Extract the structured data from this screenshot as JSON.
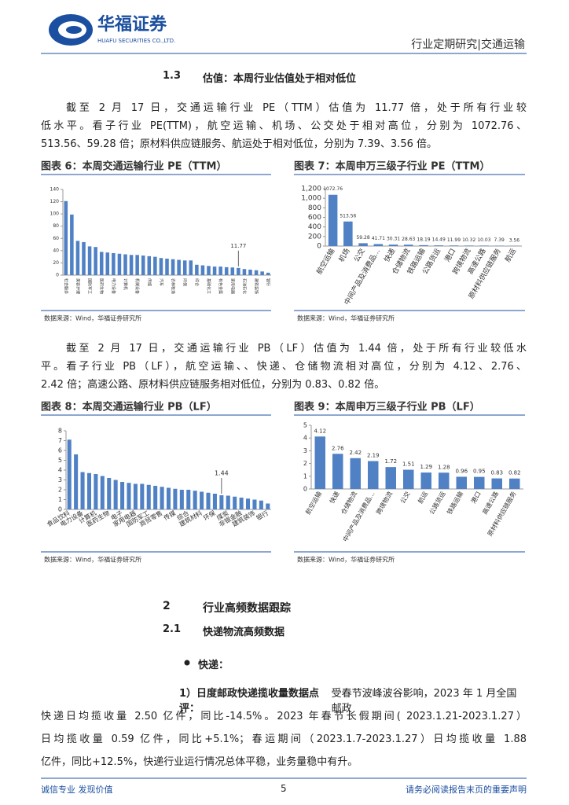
{
  "header": {
    "company": "华福证券",
    "company_en": "HUAFU SECURITIES CO.,LTD.",
    "report_type": "行业定期研究|交通运输"
  },
  "section_1_3": {
    "number": "1.3",
    "title": "估值：本周行业估值处于相对低位"
  },
  "paragraph_1": [
    "截至 2 月 17 日，交通运输行业 PE（TTM）估值为 11.77 倍，处于所有行业较",
    "低水平。看子行业 PE(TTM)，航空运输、机场、公交处于相对高位，分别为 1072.76、",
    "513.56、59.28 倍；原材料供应链服务、航运处于相对低位，分别为 7.39、3.56 倍。"
  ],
  "paragraph_2": [
    "截至 2 月 17 日，交通运输行业 PB（LF）估值为 1.44 倍，处于所有行业较低水",
    "平。看子行业 PB（LF），航空运输、、快递、仓储物流相对高位，分别为 4.12、2.76、",
    "2.42 倍；高速公路、原材料供应链服务相对低位，分别为 0.83、0.82 倍。"
  ],
  "section_2": {
    "number": "2",
    "title": "行业高频数据跟踪"
  },
  "section_2_1": {
    "number": "2.1",
    "title": "快递物流高频数据"
  },
  "bullet": "快递：",
  "paragraph_3": {
    "lead": "1）日度邮政快递揽收量数据点评：",
    "lines": [
      "受春节波峰波谷影响，2023 年 1 月全国邮政",
      "快递日均揽收量 2.50 亿件，同比-14.5%。2023 年春节长假期间( 2023.1.21-2023.1.27）",
      "日均揽收量 0.59 亿件，同比+5.1%；春运期间（2023.1.7-2023.1.27）日均揽收量 1.88",
      "亿件，同比+12.5%，快递行业运行情况总体平稳，业务量稳中有升。"
    ]
  },
  "footer": {
    "left": "诚信专业  发现价值",
    "page": "5",
    "right": "请务必阅读报告末页的重要声明"
  },
  "chart_data": [
    {
      "type": "bar",
      "title": "图表 6：本周交通运输行业 PE（TTM）",
      "source": "数据来源：Wind，华福证券研究所",
      "color": "#4f81c4",
      "grid": false,
      "categories": [
        "社会服务",
        null,
        "美容护理",
        null,
        "国防军工",
        null,
        "医药生物",
        null,
        "电力设备",
        null,
        "计算机",
        null,
        "机械设备",
        null,
        "传媒",
        null,
        "汽车",
        null,
        "农林牧渔",
        null,
        "环保",
        null,
        "综合",
        null,
        "基础化工",
        null,
        "有色金属",
        null,
        "家用电器",
        null,
        "石油石化",
        null,
        "建筑装饰",
        null,
        "银行"
      ],
      "values": [
        121,
        99,
        56,
        54,
        47,
        46,
        38,
        37,
        36,
        35,
        34,
        33,
        33,
        32,
        31,
        30,
        28,
        27,
        26,
        25,
        24,
        24,
        17,
        16,
        15,
        14,
        14,
        13,
        12.5,
        11.77,
        10,
        9,
        8,
        6,
        4
      ],
      "value_labels": [
        null,
        null,
        null,
        null,
        null,
        null,
        null,
        null,
        null,
        null,
        null,
        null,
        null,
        null,
        null,
        null,
        null,
        null,
        null,
        null,
        null,
        null,
        null,
        null,
        null,
        null,
        null,
        null,
        null,
        "11.77",
        null,
        null,
        null,
        null,
        null
      ],
      "ylim": [
        0,
        140
      ],
      "yticks": [
        0,
        20,
        40,
        60,
        80,
        100,
        120,
        140
      ]
    },
    {
      "type": "bar",
      "title": "图表 7：本周申万三级子行业 PE（TTM）",
      "source": "数据来源：Wind，华福证券研究所",
      "color": "#4f81c4",
      "grid": false,
      "categories": [
        "航空运输",
        "机场",
        "公交",
        "中间产品及消费品…",
        "快递",
        "仓储物流",
        "铁路运输",
        "公路货运",
        "港口",
        "跨境物流",
        "高速公路",
        "原材料供应链服务",
        "航运"
      ],
      "values": [
        1072.76,
        513.56,
        59.28,
        41.71,
        30.31,
        28.63,
        18.19,
        14.49,
        11.99,
        10.32,
        10.03,
        7.39,
        3.56
      ],
      "data_labels": true,
      "ylim": [
        0,
        1200
      ],
      "yticks": [
        0,
        200,
        400,
        600,
        800,
        {
          "value": 1000,
          "label": "1,000"
        },
        {
          "value": 1200,
          "label": "1,200"
        }
      ]
    },
    {
      "type": "bar",
      "title": "图表 8：本周交通运输行业 PB（LF）",
      "source": "数据来源：Wind，华福证券研究所",
      "color": "#4f81c4",
      "grid": false,
      "categories": [
        "食品饮料",
        null,
        "电力设备",
        null,
        "计算机",
        null,
        "医药生物",
        null,
        "电子",
        null,
        "家用电器",
        null,
        "国防军工",
        null,
        "商贸零售",
        null,
        "传媒",
        null,
        "综合",
        null,
        "建筑材料",
        null,
        "环保",
        null,
        "煤炭",
        null,
        "非银金融",
        null,
        "建筑装饰",
        null,
        "银行"
      ],
      "values": [
        7.1,
        5.6,
        3.8,
        3.7,
        3.6,
        3.4,
        3.2,
        3.0,
        2.8,
        2.7,
        2.6,
        2.6,
        2.5,
        2.4,
        2.3,
        2.2,
        2.1,
        2.0,
        2.0,
        1.9,
        1.8,
        1.7,
        1.6,
        1.44,
        1.4,
        1.3,
        1.2,
        1.1,
        1.0,
        0.9,
        0.6
      ],
      "value_labels": [
        null,
        null,
        null,
        null,
        null,
        null,
        null,
        null,
        null,
        null,
        null,
        null,
        null,
        null,
        null,
        null,
        null,
        null,
        null,
        null,
        null,
        null,
        null,
        "1.44",
        null,
        null,
        null,
        null,
        null,
        null,
        null
      ],
      "ylim": [
        0,
        8
      ],
      "yticks": [
        0,
        1,
        2,
        3,
        4,
        5,
        6,
        7,
        8
      ]
    },
    {
      "type": "bar",
      "title": "图表 9：本周申万三级子行业 PB（LF）",
      "source": "数据来源：Wind，华福证券研究所",
      "color": "#4f81c4",
      "grid": false,
      "categories": [
        "航空运输",
        "快递",
        "仓储物流",
        "中间产品及消费品…",
        "跨境物流",
        "公交",
        "航运",
        "公路货运",
        "铁路运输",
        "港口",
        "高速公路",
        "原材料供应链服务"
      ],
      "values": [
        4.12,
        2.76,
        2.42,
        2.19,
        1.72,
        1.51,
        1.29,
        1.28,
        0.96,
        0.95,
        0.83,
        0.82
      ],
      "data_labels": true,
      "ylim": [
        0,
        5
      ],
      "yticks": [
        0,
        1,
        2,
        3,
        4,
        5
      ]
    }
  ]
}
